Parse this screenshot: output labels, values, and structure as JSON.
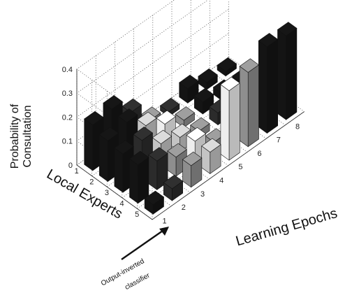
{
  "chart_data": {
    "type": "bar3d",
    "zlabel_line1": "Probability of",
    "zlabel_line2": "Consultation",
    "ylabel": "Local Experts",
    "xlabel": "Learning Epochs",
    "z_ticks": [
      "0",
      "0.1",
      "0.2",
      "0.3",
      "0.4"
    ],
    "zlim": [
      0,
      0.4
    ],
    "expert_ticks": [
      "1",
      "2",
      "3",
      "4",
      "5"
    ],
    "epoch_ticks": [
      "1",
      "2",
      "3",
      "4",
      "5",
      "6",
      "7",
      "8"
    ],
    "grid": true,
    "annotation": {
      "line1": "Output-inverted",
      "line2": "classifier",
      "points_to_expert": "5"
    },
    "colors": {
      "1": "#141414",
      "2": "#2b2b2b",
      "3": "#c4c4c4",
      "4": "#eeeeee",
      "5": "#8e8e8e"
    },
    "bars": [
      {
        "epoch": 1,
        "expert": 1,
        "value": 0.19,
        "shade": "1"
      },
      {
        "epoch": 1,
        "expert": 2,
        "value": 0.17,
        "shade": "1"
      },
      {
        "epoch": 1,
        "expert": 3,
        "value": 0.16,
        "shade": "1"
      },
      {
        "epoch": 1,
        "expert": 4,
        "value": 0.16,
        "shade": "1"
      },
      {
        "epoch": 1,
        "expert": 5,
        "value": 0.04,
        "shade": "1"
      },
      {
        "epoch": 2,
        "expert": 1,
        "value": 0.2,
        "shade": "1"
      },
      {
        "epoch": 2,
        "expert": 2,
        "value": 0.19,
        "shade": "1"
      },
      {
        "epoch": 2,
        "expert": 3,
        "value": 0.16,
        "shade": "2"
      },
      {
        "epoch": 2,
        "expert": 4,
        "value": 0.12,
        "shade": "2"
      },
      {
        "epoch": 2,
        "expert": 5,
        "value": 0.05,
        "shade": "2"
      },
      {
        "epoch": 3,
        "expert": 1,
        "value": 0.13,
        "shade": "2"
      },
      {
        "epoch": 3,
        "expert": 2,
        "value": 0.12,
        "shade": "3"
      },
      {
        "epoch": 3,
        "expert": 3,
        "value": 0.09,
        "shade": "3"
      },
      {
        "epoch": 3,
        "expert": 4,
        "value": 0.08,
        "shade": "5"
      },
      {
        "epoch": 3,
        "expert": 5,
        "value": 0.09,
        "shade": "5"
      },
      {
        "epoch": 4,
        "expert": 1,
        "value": 0.04,
        "shade": "5"
      },
      {
        "epoch": 4,
        "expert": 2,
        "value": 0.07,
        "shade": "4"
      },
      {
        "epoch": 4,
        "expert": 3,
        "value": 0.06,
        "shade": "3"
      },
      {
        "epoch": 4,
        "expert": 4,
        "value": 0.09,
        "shade": "4"
      },
      {
        "epoch": 4,
        "expert": 5,
        "value": 0.09,
        "shade": "3"
      },
      {
        "epoch": 5,
        "expert": 1,
        "value": 0.02,
        "shade": "2"
      },
      {
        "epoch": 5,
        "expert": 2,
        "value": 0.03,
        "shade": "5"
      },
      {
        "epoch": 5,
        "expert": 3,
        "value": 0.03,
        "shade": "5"
      },
      {
        "epoch": 5,
        "expert": 4,
        "value": 0.03,
        "shade": "5"
      },
      {
        "epoch": 5,
        "expert": 5,
        "value": 0.29,
        "shade": "4"
      },
      {
        "epoch": 6,
        "expert": 1,
        "value": 0.06,
        "shade": "1"
      },
      {
        "epoch": 6,
        "expert": 2,
        "value": 0.05,
        "shade": "1"
      },
      {
        "epoch": 6,
        "expert": 3,
        "value": 0.05,
        "shade": "2"
      },
      {
        "epoch": 6,
        "expert": 4,
        "value": 0.05,
        "shade": "2"
      },
      {
        "epoch": 6,
        "expert": 5,
        "value": 0.31,
        "shade": "5"
      },
      {
        "epoch": 7,
        "expert": 1,
        "value": 0.03,
        "shade": "1"
      },
      {
        "epoch": 7,
        "expert": 2,
        "value": 0.03,
        "shade": "1"
      },
      {
        "epoch": 7,
        "expert": 3,
        "value": 0.03,
        "shade": "1"
      },
      {
        "epoch": 7,
        "expert": 4,
        "value": 0.03,
        "shade": "1"
      },
      {
        "epoch": 7,
        "expert": 5,
        "value": 0.36,
        "shade": "1"
      },
      {
        "epoch": 8,
        "expert": 1,
        "value": 0.02,
        "shade": "1"
      },
      {
        "epoch": 8,
        "expert": 2,
        "value": 0.02,
        "shade": "1"
      },
      {
        "epoch": 8,
        "expert": 3,
        "value": 0.02,
        "shade": "1"
      },
      {
        "epoch": 8,
        "expert": 4,
        "value": 0.02,
        "shade": "1"
      },
      {
        "epoch": 8,
        "expert": 5,
        "value": 0.35,
        "shade": "1"
      }
    ]
  }
}
